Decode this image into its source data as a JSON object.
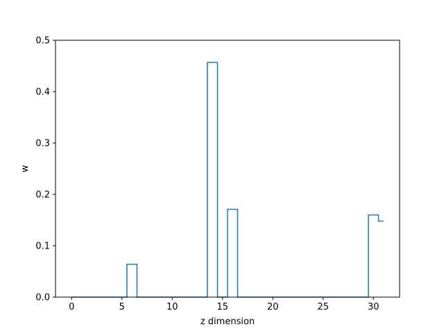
{
  "chart_data": {
    "type": "line",
    "drawstyle": "steps-mid",
    "title": "",
    "xlabel": "z dimension",
    "ylabel": "w",
    "xlim": [
      -1.6,
      32.6
    ],
    "ylim": [
      0.0,
      0.5
    ],
    "xticks": [
      0,
      5,
      10,
      15,
      20,
      25,
      30
    ],
    "yticks": [
      0.0,
      0.1,
      0.2,
      0.3,
      0.4,
      0.5
    ],
    "xtick_labels": [
      "0",
      "5",
      "10",
      "15",
      "20",
      "25",
      "30"
    ],
    "ytick_labels": [
      "0.0",
      "0.1",
      "0.2",
      "0.3",
      "0.4",
      "0.5"
    ],
    "grid": false,
    "color": "#1f77b4",
    "series": [
      {
        "x": [
          0,
          1,
          2,
          3,
          4,
          5,
          6,
          7,
          8,
          9,
          10,
          11,
          12,
          13,
          14,
          15,
          16,
          17,
          18,
          19,
          20,
          21,
          22,
          23,
          24,
          25,
          26,
          27,
          28,
          29,
          30,
          31
        ],
        "values": [
          0.0,
          0.0,
          0.0,
          0.0,
          0.0,
          0.0,
          0.064,
          0.0,
          0.0,
          0.0,
          0.0,
          0.0,
          0.0,
          0.0,
          0.457,
          0.0,
          0.171,
          0.0,
          0.0,
          0.0,
          0.0,
          0.0,
          0.0,
          0.0,
          0.0,
          0.0,
          0.0,
          0.0,
          0.0,
          0.0,
          0.16,
          0.148
        ]
      }
    ]
  }
}
